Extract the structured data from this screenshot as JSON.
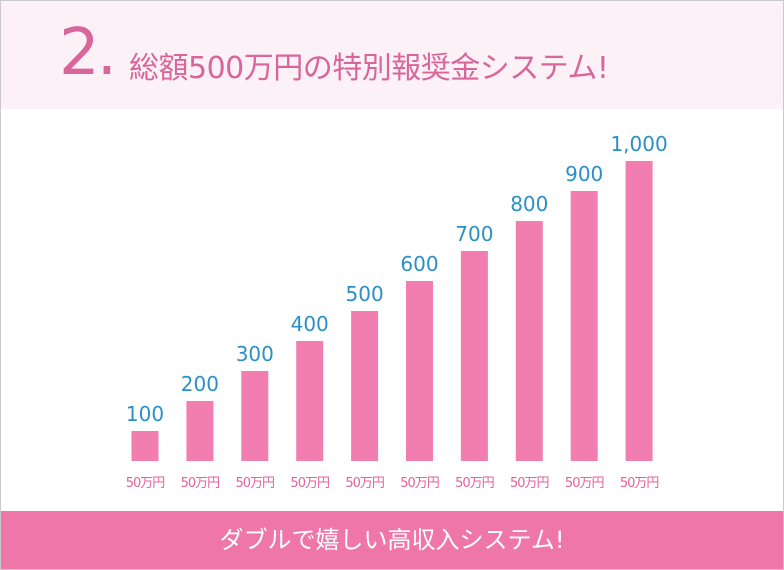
{
  "header": {
    "number": "2.",
    "title": "総額500万円の特別報奨金システム!"
  },
  "footer": {
    "text": "ダブルで嬉しい高収入システム!"
  },
  "colors": {
    "bar": "#f27eb1",
    "value_label": "#2b90c6",
    "category_label": "#e4619c"
  },
  "chart_data": {
    "type": "bar",
    "categories": [
      "50万円",
      "50万円",
      "50万円",
      "50万円",
      "50万円",
      "50万円",
      "50万円",
      "50万円",
      "50万円",
      "50万円"
    ],
    "values": [
      100,
      200,
      300,
      400,
      500,
      600,
      700,
      800,
      900,
      1000
    ],
    "value_labels": [
      "100",
      "200",
      "300",
      "400",
      "500",
      "600",
      "700",
      "800",
      "900",
      "1,000"
    ],
    "ylim": [
      0,
      1000
    ],
    "grid": false,
    "legend": "none"
  }
}
